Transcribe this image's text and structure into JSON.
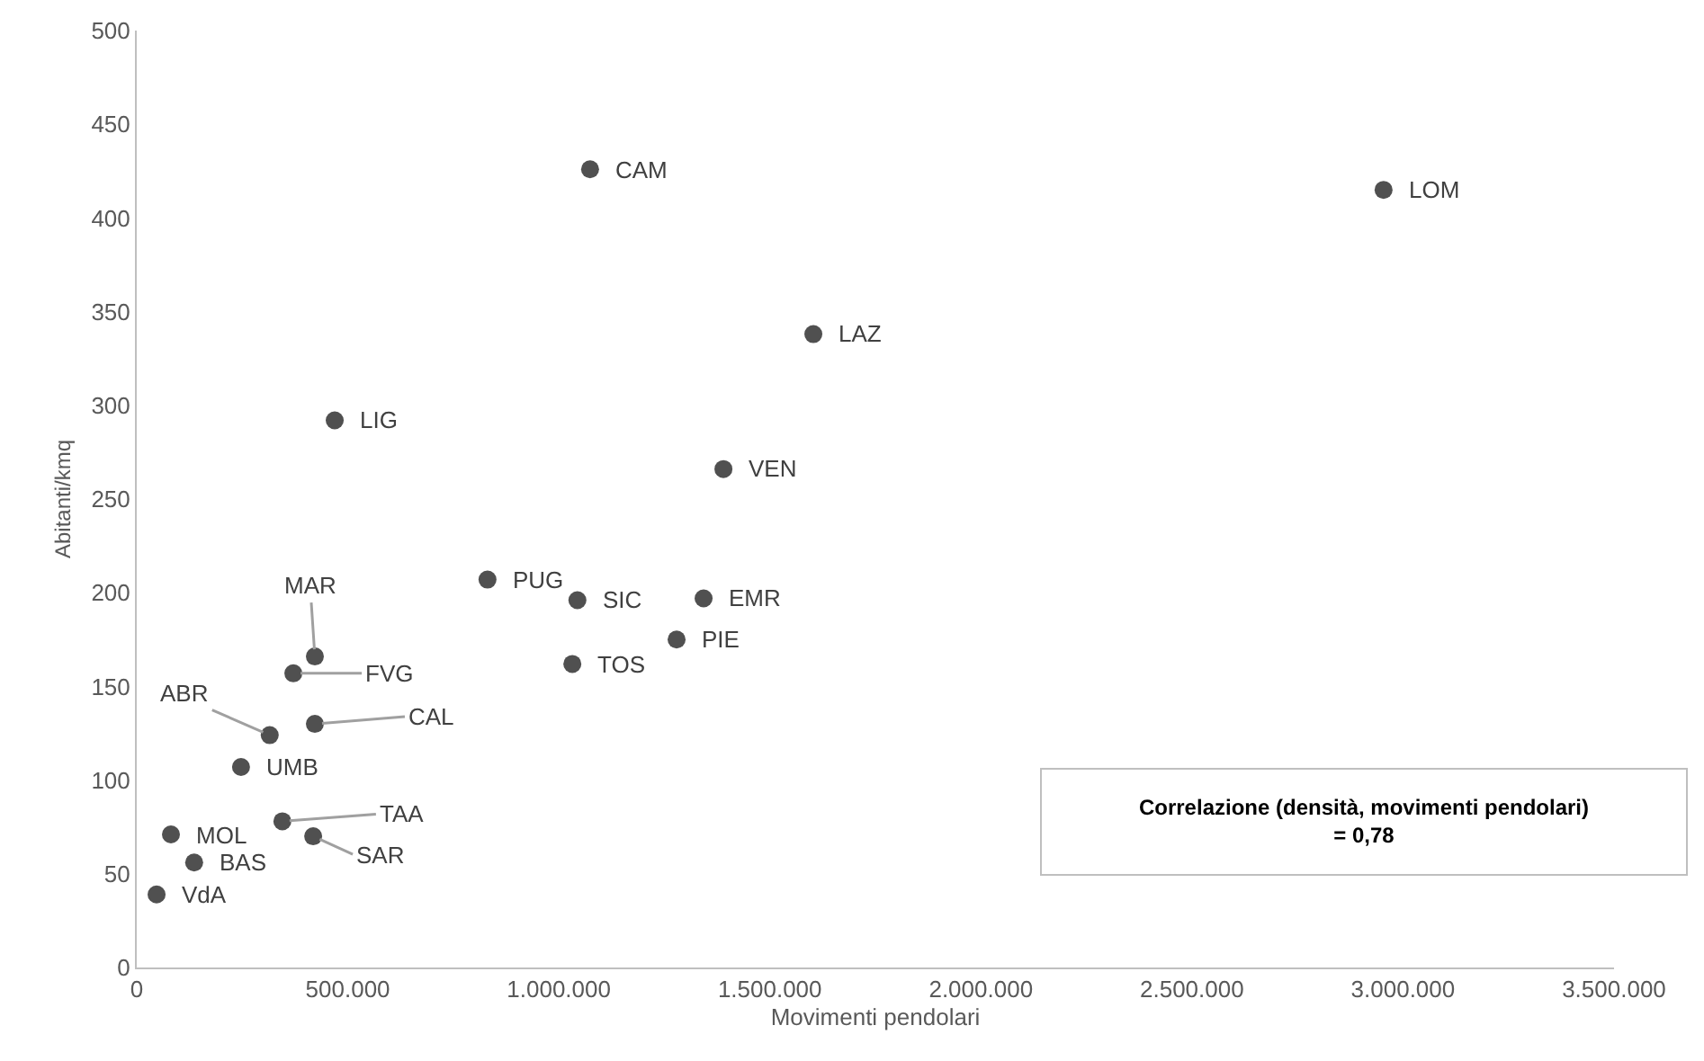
{
  "chart_data": {
    "type": "scatter",
    "xlabel": "Movimenti pendolari",
    "ylabel": "Abitanti/kmq",
    "xlim": [
      0,
      3500000
    ],
    "xticks": [
      {
        "value": 0,
        "label": "0"
      },
      {
        "value": 500000,
        "label": "500.000"
      },
      {
        "value": 1000000,
        "label": "1.000.000"
      },
      {
        "value": 1500000,
        "label": "1.500.000"
      },
      {
        "value": 2000000,
        "label": "2.000.000"
      },
      {
        "value": 2500000,
        "label": "2.500.000"
      },
      {
        "value": 3000000,
        "label": "3.000.000"
      },
      {
        "value": 3500000,
        "label": "3.500.000"
      }
    ],
    "ylim": [
      0,
      500
    ],
    "yticks": [
      0,
      50,
      100,
      150,
      200,
      250,
      300,
      350,
      400,
      450,
      500
    ],
    "grid": false,
    "marker": "circle",
    "series": [
      {
        "color": "#505050",
        "x": [
          1074000,
          2954000,
          1603000,
          469000,
          1390000,
          831000,
          1044000,
          1343000,
          1279000,
          1032000,
          422000,
          371000,
          422000,
          315000,
          247000,
          345000,
          418000,
          81000,
          136000,
          47000
        ],
        "values": [
          426,
          415,
          338,
          292,
          266,
          207,
          196,
          197,
          175,
          162,
          166,
          157,
          130,
          124,
          107,
          78,
          70,
          71,
          56,
          39
        ]
      }
    ],
    "annotations": [
      {
        "text": "CAM",
        "x": 1074000,
        "y": 426
      },
      {
        "text": "LOM",
        "x": 2954000,
        "y": 415
      },
      {
        "text": "LAZ",
        "x": 1603000,
        "y": 338
      },
      {
        "text": "LIG",
        "x": 469000,
        "y": 292
      },
      {
        "text": "VEN",
        "x": 1390000,
        "y": 266
      },
      {
        "text": "PUG",
        "x": 831000,
        "y": 207
      },
      {
        "text": "SIC",
        "x": 1044000,
        "y": 196
      },
      {
        "text": "EMR",
        "x": 1343000,
        "y": 197
      },
      {
        "text": "PIE",
        "x": 1279000,
        "y": 175
      },
      {
        "text": "TOS",
        "x": 1032000,
        "y": 162
      },
      {
        "text": "MAR",
        "x": 422000,
        "y": 166
      },
      {
        "text": "FVG",
        "x": 371000,
        "y": 157
      },
      {
        "text": "CAL",
        "x": 422000,
        "y": 130
      },
      {
        "text": "ABR",
        "x": 315000,
        "y": 124
      },
      {
        "text": "UMB",
        "x": 247000,
        "y": 107
      },
      {
        "text": "TAA",
        "x": 345000,
        "y": 78
      },
      {
        "text": "SAR",
        "x": 418000,
        "y": 70
      },
      {
        "text": "MOL",
        "x": 81000,
        "y": 71
      },
      {
        "text": "BAS",
        "x": 136000,
        "y": 56
      },
      {
        "text": "VdA",
        "x": 47000,
        "y": 39
      },
      "Correlazione (densità, movimenti pendolari)\n= 0,78"
    ]
  }
}
